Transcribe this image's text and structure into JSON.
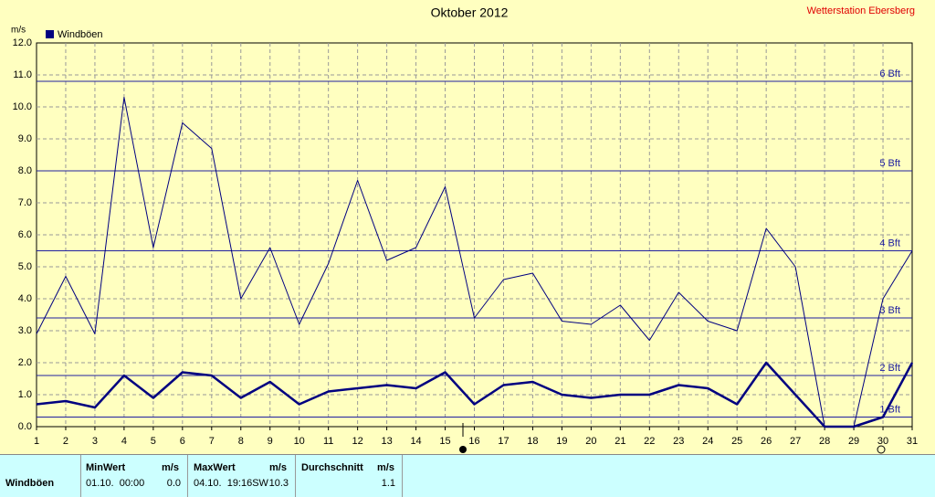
{
  "chart_data": {
    "type": "line",
    "title": "Oktober 2012",
    "station": "Wetterstation Ebersberg",
    "y_label": "m/s",
    "x": [
      1,
      2,
      3,
      4,
      5,
      6,
      7,
      8,
      9,
      10,
      11,
      12,
      13,
      14,
      15,
      16,
      17,
      18,
      19,
      20,
      21,
      22,
      23,
      24,
      25,
      26,
      27,
      28,
      29,
      30,
      31
    ],
    "xlim": [
      1,
      31
    ],
    "xticks": [
      1,
      2,
      3,
      4,
      5,
      6,
      7,
      8,
      9,
      10,
      11,
      12,
      13,
      14,
      15,
      16,
      17,
      18,
      19,
      20,
      21,
      22,
      23,
      24,
      25,
      26,
      27,
      28,
      29,
      30,
      31
    ],
    "ylim": [
      0,
      12
    ],
    "yticks": [
      {
        "value": 0,
        "label": "0.0"
      },
      {
        "value": 1,
        "label": "1.0"
      },
      {
        "value": 2,
        "label": "2.0"
      },
      {
        "value": 3,
        "label": "3.0"
      },
      {
        "value": 4,
        "label": "4.0"
      },
      {
        "value": 5,
        "label": "5.0"
      },
      {
        "value": 6,
        "label": "6.0"
      },
      {
        "value": 7,
        "label": "7.0"
      },
      {
        "value": 8,
        "label": "8.0"
      },
      {
        "value": 9,
        "label": "9.0"
      },
      {
        "value": 10,
        "label": "10.0"
      },
      {
        "value": 11,
        "label": "11.0"
      },
      {
        "value": 12,
        "label": "12.0"
      }
    ],
    "grid": true,
    "series": [
      {
        "name": "Windböen",
        "color": "#000080",
        "values": [
          0.7,
          0.8,
          0.6,
          1.6,
          0.9,
          1.7,
          1.6,
          0.9,
          1.4,
          0.7,
          1.1,
          1.2,
          1.3,
          1.2,
          1.7,
          0.7,
          1.3,
          1.4,
          1.0,
          0.9,
          1.0,
          1.0,
          1.3,
          1.2,
          0.7,
          2.0,
          1.0,
          0,
          0,
          0.3,
          2.0
        ]
      },
      {
        "color": "#000080",
        "values": [
          2.9,
          4.7,
          2.9,
          10.3,
          5.6,
          9.5,
          8.7,
          4.0,
          5.6,
          3.2,
          5.1,
          7.7,
          5.2,
          5.6,
          7.5,
          3.4,
          4.6,
          4.8,
          3.3,
          3.2,
          3.8,
          2.7,
          4.2,
          3.3,
          3.0,
          6.2,
          5.0,
          0,
          0,
          4.0,
          5.5
        ]
      }
    ],
    "ref_lines": [
      {
        "value": 0.3,
        "label": "1 Bft"
      },
      {
        "value": 1.6,
        "label": "2 Bft"
      },
      {
        "value": 3.4,
        "label": "3 Bft"
      },
      {
        "value": 5.5,
        "label": "4 Bft"
      },
      {
        "value": 8.0,
        "label": "5 Bft"
      },
      {
        "value": 10.8,
        "label": "6 Bft"
      }
    ],
    "ref_color": "#2020a0"
  },
  "table": {
    "header": [
      "MinWert",
      "m/s",
      "MaxWert",
      "m/s",
      "Durchschnitt",
      "m/s"
    ],
    "rows": [
      [
        "Windböen",
        "01.10.  00:00",
        "0.0",
        "04.10.  19:16SW",
        "10.3",
        "1.1"
      ]
    ]
  }
}
